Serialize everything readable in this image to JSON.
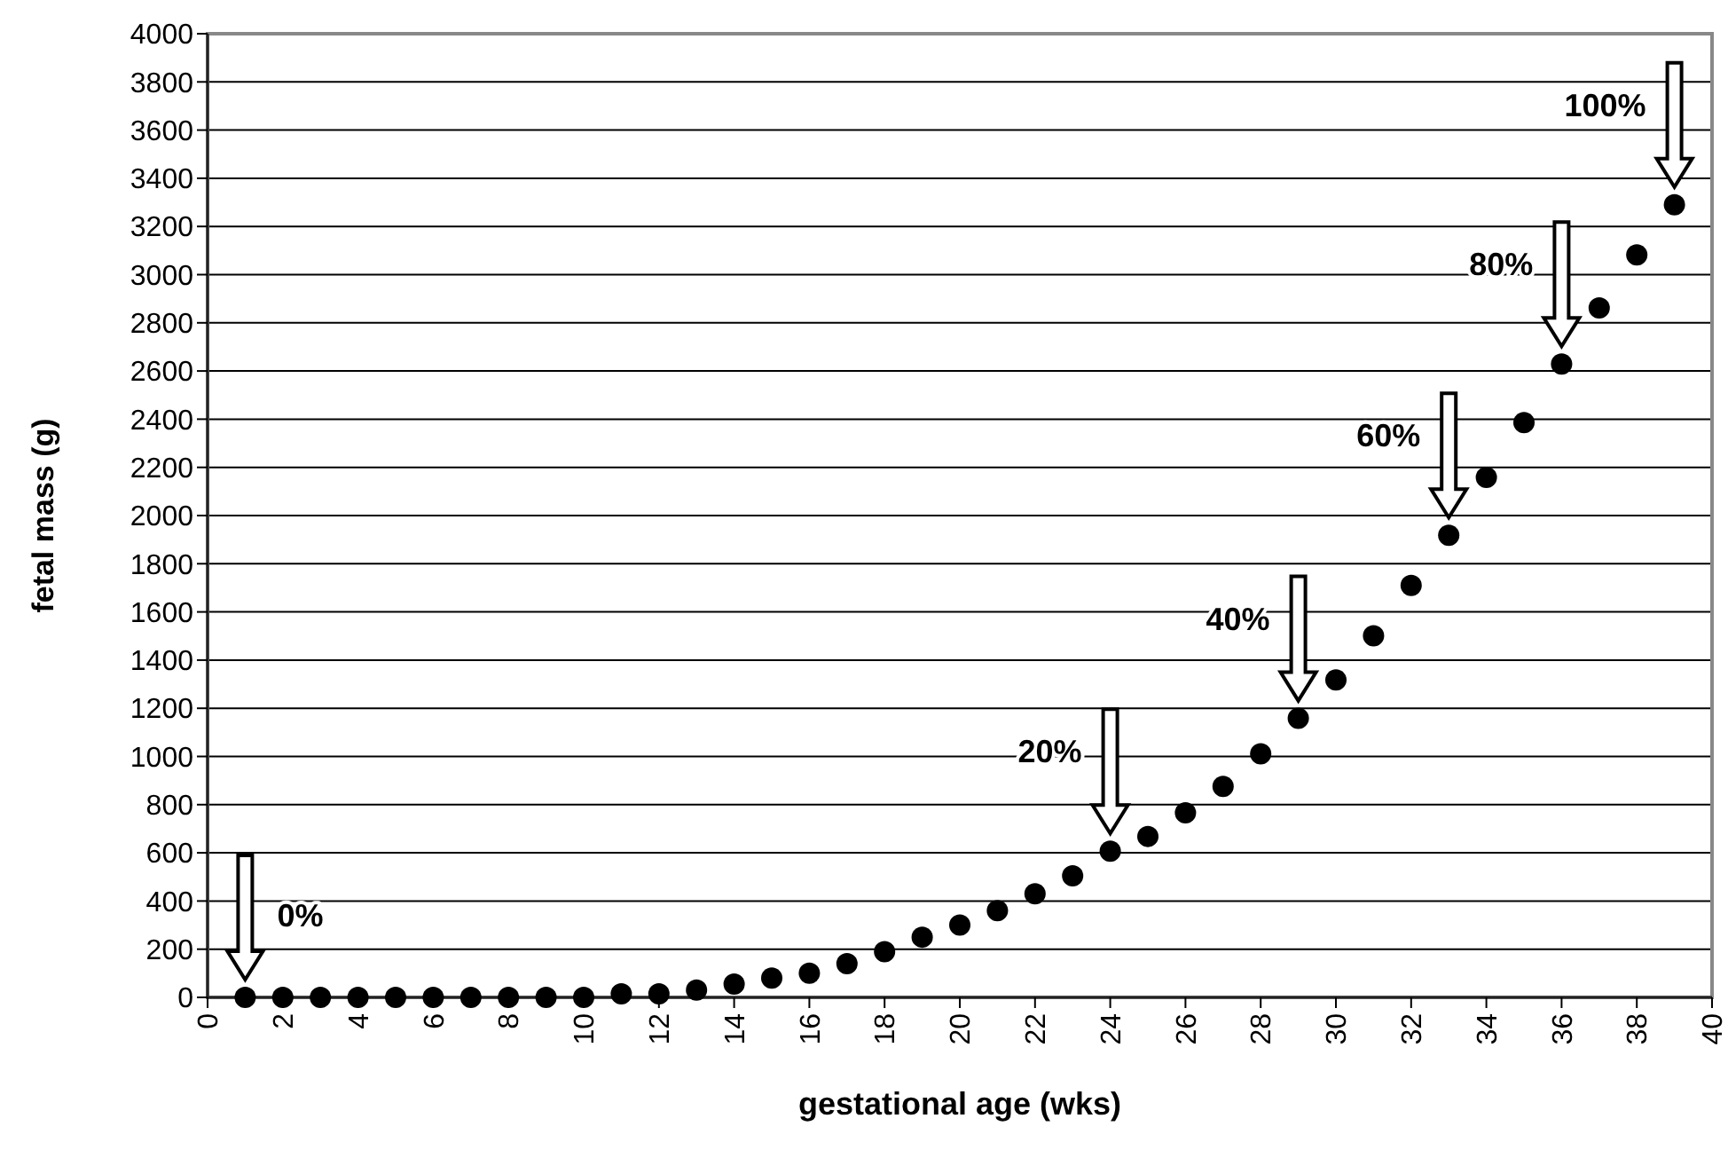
{
  "chart_data": {
    "type": "scatter",
    "xlabel": "gestational age (wks)",
    "ylabel": "fetal mass (g)",
    "x": [
      1,
      2,
      3,
      4,
      5,
      6,
      7,
      8,
      9,
      10,
      11,
      12,
      13,
      14,
      15,
      16,
      17,
      18,
      19,
      20,
      21,
      22,
      23,
      24,
      25,
      26,
      27,
      28,
      29,
      30,
      31,
      32,
      33,
      34,
      35,
      36,
      37,
      38,
      39
    ],
    "series": [
      {
        "color": "#000000",
        "values": [
          0,
          0,
          0,
          0,
          0,
          0,
          0,
          0,
          0,
          0,
          15,
          15,
          30,
          55,
          80,
          100,
          140,
          190,
          250,
          300,
          360,
          430,
          505,
          607,
          668,
          766,
          876,
          1011,
          1158,
          1318,
          1501,
          1710,
          1918,
          2158,
          2386,
          2629,
          2862,
          3082,
          3290
        ]
      }
    ],
    "marker": "circle",
    "grid": "y",
    "xlim": [
      0,
      40
    ],
    "xticks": [
      0,
      2,
      4,
      6,
      8,
      10,
      12,
      14,
      16,
      18,
      20,
      22,
      24,
      26,
      28,
      30,
      32,
      34,
      36,
      38,
      40
    ],
    "ylim": [
      0,
      4000
    ],
    "yticks": [
      0,
      200,
      400,
      600,
      800,
      1000,
      1200,
      1400,
      1600,
      1800,
      2000,
      2200,
      2400,
      2600,
      2800,
      3000,
      3200,
      3400,
      3600,
      3800,
      4000
    ],
    "annotations": [
      {
        "text": "0%",
        "x": 1,
        "y": 0
      },
      {
        "text": "20%",
        "x": 24,
        "y": 607
      },
      {
        "text": "40%",
        "x": 29,
        "y": 1158
      },
      {
        "text": "60%",
        "x": 33,
        "y": 1918
      },
      {
        "text": "80%",
        "x": 36,
        "y": 2629
      },
      {
        "text": "100%",
        "x": 39,
        "y": 3290
      }
    ]
  }
}
